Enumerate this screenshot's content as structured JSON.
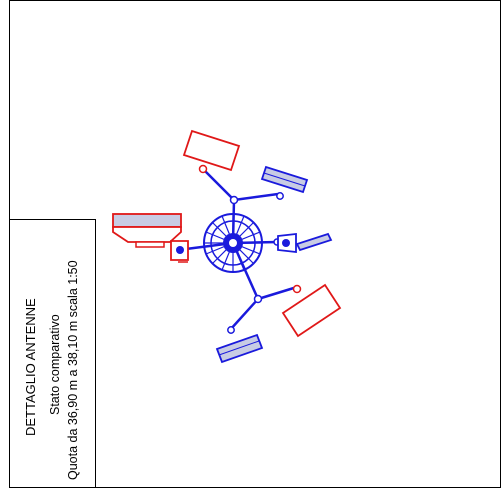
{
  "title_block": {
    "line1": "DETTAGLIO ANTENNE",
    "line2": "Stato comparativo",
    "line3": "Quota da 36,90 m a 38,10 m scala 1:50"
  },
  "colors": {
    "existing": "#1a1adc",
    "new": "#e01818",
    "panel_fill": "#c8cce4",
    "line": "#000000"
  }
}
